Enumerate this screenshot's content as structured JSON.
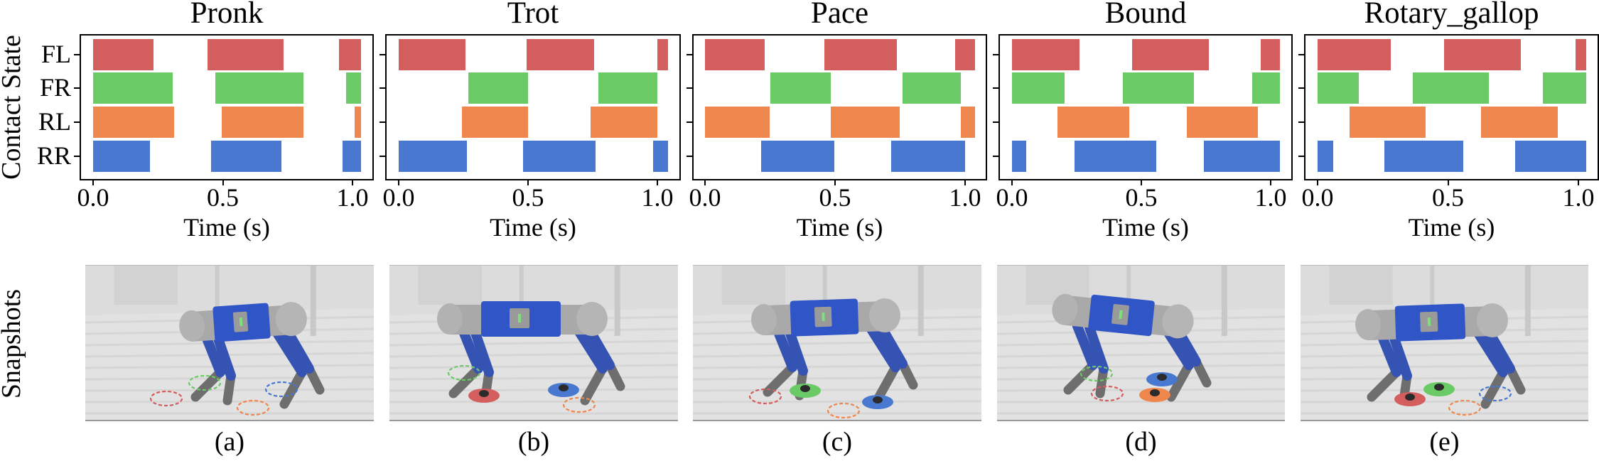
{
  "figure": {
    "row_labels": {
      "top": "Contact State",
      "bottom": "Snapshots"
    },
    "legs": [
      "FL",
      "FR",
      "RL",
      "RR"
    ],
    "leg_colors": {
      "FL": "#d45e5e",
      "FR": "#6aca65",
      "RL": "#ee864d",
      "RR": "#4878cf"
    },
    "xlabel": "Time (s)",
    "xticks": [
      "0.0",
      "0.5",
      "1.0"
    ]
  },
  "chart_data": [
    {
      "type": "bar",
      "subtype": "gait-contact-timeline",
      "title": "Pronk",
      "xlabel": "Time (s)",
      "ylabel": "Contact State",
      "xlim": [
        -0.05,
        1.08
      ],
      "xticks": [
        0.0,
        0.5,
        1.0
      ],
      "categories": [
        "FL",
        "FR",
        "RL",
        "RR"
      ],
      "series": [
        {
          "name": "FL",
          "color": "#d45e5e",
          "intervals": [
            [
              0.0,
              0.233
            ],
            [
              0.441,
              0.734
            ],
            [
              0.948,
              1.033
            ]
          ]
        },
        {
          "name": "FR",
          "color": "#6aca65",
          "intervals": [
            [
              0.0,
              0.306
            ],
            [
              0.472,
              0.812
            ],
            [
              0.975,
              1.033
            ]
          ]
        },
        {
          "name": "RL",
          "color": "#ee864d",
          "intervals": [
            [
              0.0,
              0.312
            ],
            [
              0.496,
              0.812
            ],
            [
              1.007,
              1.033
            ]
          ]
        },
        {
          "name": "RR",
          "color": "#4878cf",
          "intervals": [
            [
              0.0,
              0.219
            ],
            [
              0.456,
              0.725
            ],
            [
              0.963,
              1.033
            ]
          ]
        }
      ]
    },
    {
      "type": "bar",
      "subtype": "gait-contact-timeline",
      "title": "Trot",
      "xlabel": "Time (s)",
      "xlim": [
        -0.05,
        1.08
      ],
      "xticks": [
        0.0,
        0.5,
        1.0
      ],
      "categories": [
        "FL",
        "FR",
        "RL",
        "RR"
      ],
      "series": [
        {
          "name": "FL",
          "color": "#d45e5e",
          "intervals": [
            [
              0.0,
              0.259
            ],
            [
              0.495,
              0.756
            ],
            [
              1.0,
              1.041
            ]
          ]
        },
        {
          "name": "FR",
          "color": "#6aca65",
          "intervals": [
            [
              0.269,
              0.5
            ],
            [
              0.772,
              1.0
            ]
          ]
        },
        {
          "name": "RL",
          "color": "#ee864d",
          "intervals": [
            [
              0.245,
              0.5
            ],
            [
              0.742,
              1.0
            ]
          ]
        },
        {
          "name": "RR",
          "color": "#4878cf",
          "intervals": [
            [
              0.0,
              0.264
            ],
            [
              0.481,
              0.761
            ],
            [
              0.984,
              1.041
            ]
          ]
        }
      ]
    },
    {
      "type": "bar",
      "subtype": "gait-contact-timeline",
      "title": "Pace",
      "xlabel": "Time (s)",
      "xlim": [
        -0.05,
        1.08
      ],
      "xticks": [
        0.0,
        0.5,
        1.0
      ],
      "categories": [
        "FL",
        "FR",
        "RL",
        "RR"
      ],
      "series": [
        {
          "name": "FL",
          "color": "#d45e5e",
          "intervals": [
            [
              0.0,
              0.229
            ],
            [
              0.459,
              0.738
            ],
            [
              0.962,
              1.038
            ]
          ]
        },
        {
          "name": "FR",
          "color": "#6aca65",
          "intervals": [
            [
              0.251,
              0.483
            ],
            [
              0.76,
              0.984
            ]
          ]
        },
        {
          "name": "RL",
          "color": "#ee864d",
          "intervals": [
            [
              0.0,
              0.249
            ],
            [
              0.483,
              0.749
            ],
            [
              0.984,
              1.038
            ]
          ]
        },
        {
          "name": "RR",
          "color": "#4878cf",
          "intervals": [
            [
              0.216,
              0.497
            ],
            [
              0.716,
              0.999
            ]
          ]
        }
      ]
    },
    {
      "type": "bar",
      "subtype": "gait-contact-timeline",
      "title": "Bound",
      "xlabel": "Time (s)",
      "xlim": [
        -0.05,
        1.08
      ],
      "xticks": [
        0.0,
        0.5,
        1.0
      ],
      "categories": [
        "FL",
        "FR",
        "RL",
        "RR"
      ],
      "series": [
        {
          "name": "FL",
          "color": "#d45e5e",
          "intervals": [
            [
              0.0,
              0.261
            ],
            [
              0.464,
              0.761
            ],
            [
              0.962,
              1.036
            ]
          ]
        },
        {
          "name": "FR",
          "color": "#6aca65",
          "intervals": [
            [
              0.0,
              0.203
            ],
            [
              0.429,
              0.703
            ],
            [
              0.929,
              1.036
            ]
          ]
        },
        {
          "name": "RL",
          "color": "#ee864d",
          "intervals": [
            [
              0.176,
              0.453
            ],
            [
              0.676,
              0.951
            ]
          ]
        },
        {
          "name": "RR",
          "color": "#4878cf",
          "intervals": [
            [
              0.0,
              0.055
            ],
            [
              0.242,
              0.558
            ],
            [
              0.742,
              1.036
            ]
          ]
        }
      ]
    },
    {
      "type": "bar",
      "subtype": "gait-contact-timeline",
      "title": "Rotary_gallop",
      "xlabel": "Time (s)",
      "xlim": [
        -0.05,
        1.08
      ],
      "xticks": [
        0.0,
        0.5,
        1.0
      ],
      "categories": [
        "FL",
        "FR",
        "RL",
        "RR"
      ],
      "series": [
        {
          "name": "FL",
          "color": "#d45e5e",
          "intervals": [
            [
              0.0,
              0.281
            ],
            [
              0.486,
              0.78
            ],
            [
              0.99,
              1.03
            ]
          ]
        },
        {
          "name": "FR",
          "color": "#6aca65",
          "intervals": [
            [
              0.0,
              0.158
            ],
            [
              0.365,
              0.657
            ],
            [
              0.864,
              1.03
            ]
          ]
        },
        {
          "name": "RL",
          "color": "#ee864d",
          "intervals": [
            [
              0.123,
              0.414
            ],
            [
              0.626,
              0.921
            ]
          ]
        },
        {
          "name": "RR",
          "color": "#4878cf",
          "intervals": [
            [
              0.0,
              0.06
            ],
            [
              0.256,
              0.559
            ],
            [
              0.758,
              1.03
            ]
          ]
        }
      ]
    }
  ],
  "panels": [
    {
      "title": "Pronk",
      "caption": "(a)"
    },
    {
      "title": "Trot",
      "caption": "(b)"
    },
    {
      "title": "Pace",
      "caption": "(c)"
    },
    {
      "title": "Bound",
      "caption": "(d)"
    },
    {
      "title": "Rotary_gallop",
      "caption": "(e)"
    }
  ],
  "snapshots": [
    {
      "caption": "(a)",
      "contacts": {
        "FL": "swing",
        "FR": "swing",
        "RL": "swing",
        "RR": "swing"
      }
    },
    {
      "caption": "(b)",
      "contacts": {
        "FL": "stance",
        "FR": "swing",
        "RL": "swing",
        "RR": "stance"
      }
    },
    {
      "caption": "(c)",
      "contacts": {
        "FL": "swing",
        "FR": "stance",
        "RL": "swing",
        "RR": "stance"
      }
    },
    {
      "caption": "(d)",
      "contacts": {
        "FL": "swing",
        "FR": "swing",
        "RL": "stance",
        "RR": "stance"
      }
    },
    {
      "caption": "(e)",
      "contacts": {
        "FL": "stance",
        "FR": "stance",
        "RL": "swing",
        "RR": "swing"
      }
    }
  ]
}
